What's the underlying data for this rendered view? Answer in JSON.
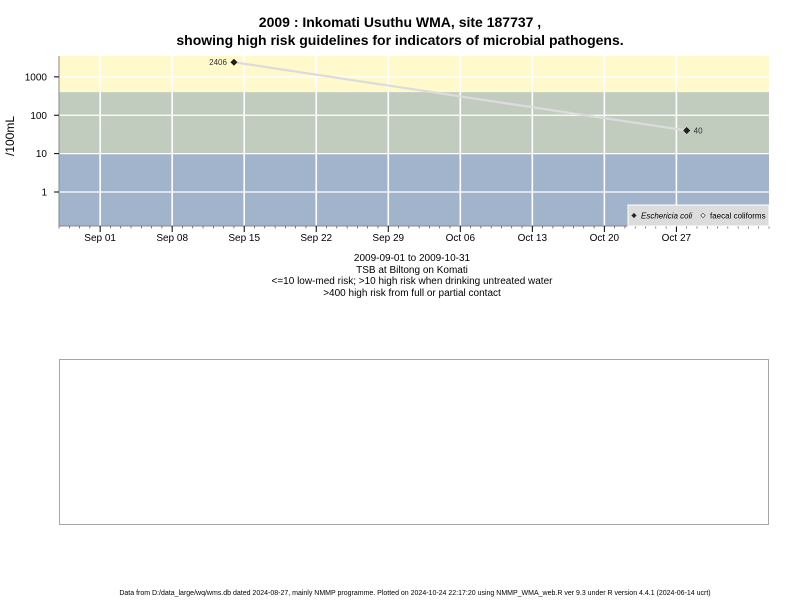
{
  "title_line1": "2009 : Inkomati Usuthu WMA, site 187737 ,",
  "title_line2": "showing high risk guidelines for indicators of microbial pathogens.",
  "captions": [
    "2009-09-01 to 2009-10-31",
    "TSB at Biltong on Komati",
    "<=10 low-med risk; >10 high risk when drinking untreated water",
    ">400 high risk from full or partial contact"
  ],
  "footer": "Data from D:/data_large/wq/wms.db dated 2024-08-27, mainly NMMP programme. Plotted on 2024-10-24 22:17:20 using NMMP_WMA_web.R ver 9.3 under R version 4.4.1 (2024-06-14 ucrt)",
  "colors": {
    "band_high_contact": "#fff9cb",
    "band_drinking": "#c1ccbf",
    "band_low": "#a2b4cc",
    "grid": "#ffffff",
    "series_line": "#dcdcdc",
    "legend_bg": "#dcdcdc"
  },
  "chart_data": {
    "type": "line",
    "ylabel": "/100mL",
    "xlabel": "",
    "y_scale": "log",
    "y_ticks": [
      1,
      10,
      100,
      1000
    ],
    "y_tick_labels": [
      "1",
      "10",
      "100",
      "1000"
    ],
    "ylim": [
      0.13,
      3500
    ],
    "xlim": [
      "2009-08-28",
      "2009-11-05"
    ],
    "x_ticks": [
      "2009-09-01",
      "2009-09-08",
      "2009-09-15",
      "2009-09-22",
      "2009-09-29",
      "2009-10-06",
      "2009-10-13",
      "2009-10-20",
      "2009-10-27"
    ],
    "x_tick_labels": [
      "Sep 01",
      "Sep 08",
      "Sep 15",
      "Sep 22",
      "Sep 29",
      "Oct 06",
      "Oct 13",
      "Oct 20",
      "Oct 27"
    ],
    "grid": true,
    "bands": [
      {
        "from": 400,
        "to": 3500,
        "meaning": ">400 high risk from full or partial contact"
      },
      {
        "from": 10,
        "to": 400,
        "meaning": ">10 high risk when drinking untreated water"
      },
      {
        "from": 0.13,
        "to": 10,
        "meaning": "<=10 low-med risk"
      }
    ],
    "series": [
      {
        "name": "Eschericia coli",
        "marker": "diamond",
        "x": [
          "2009-09-14",
          "2009-10-28"
        ],
        "y": [
          2406,
          40
        ],
        "data_labels": [
          "2406",
          "40"
        ]
      }
    ],
    "legend": {
      "position": "bottom-right",
      "entries": [
        {
          "label": "Eschericia coli",
          "marker": "diamond-filled",
          "italic": true
        },
        {
          "label": "faecal coliforms",
          "marker": "diamond-open",
          "italic": false
        }
      ]
    }
  }
}
